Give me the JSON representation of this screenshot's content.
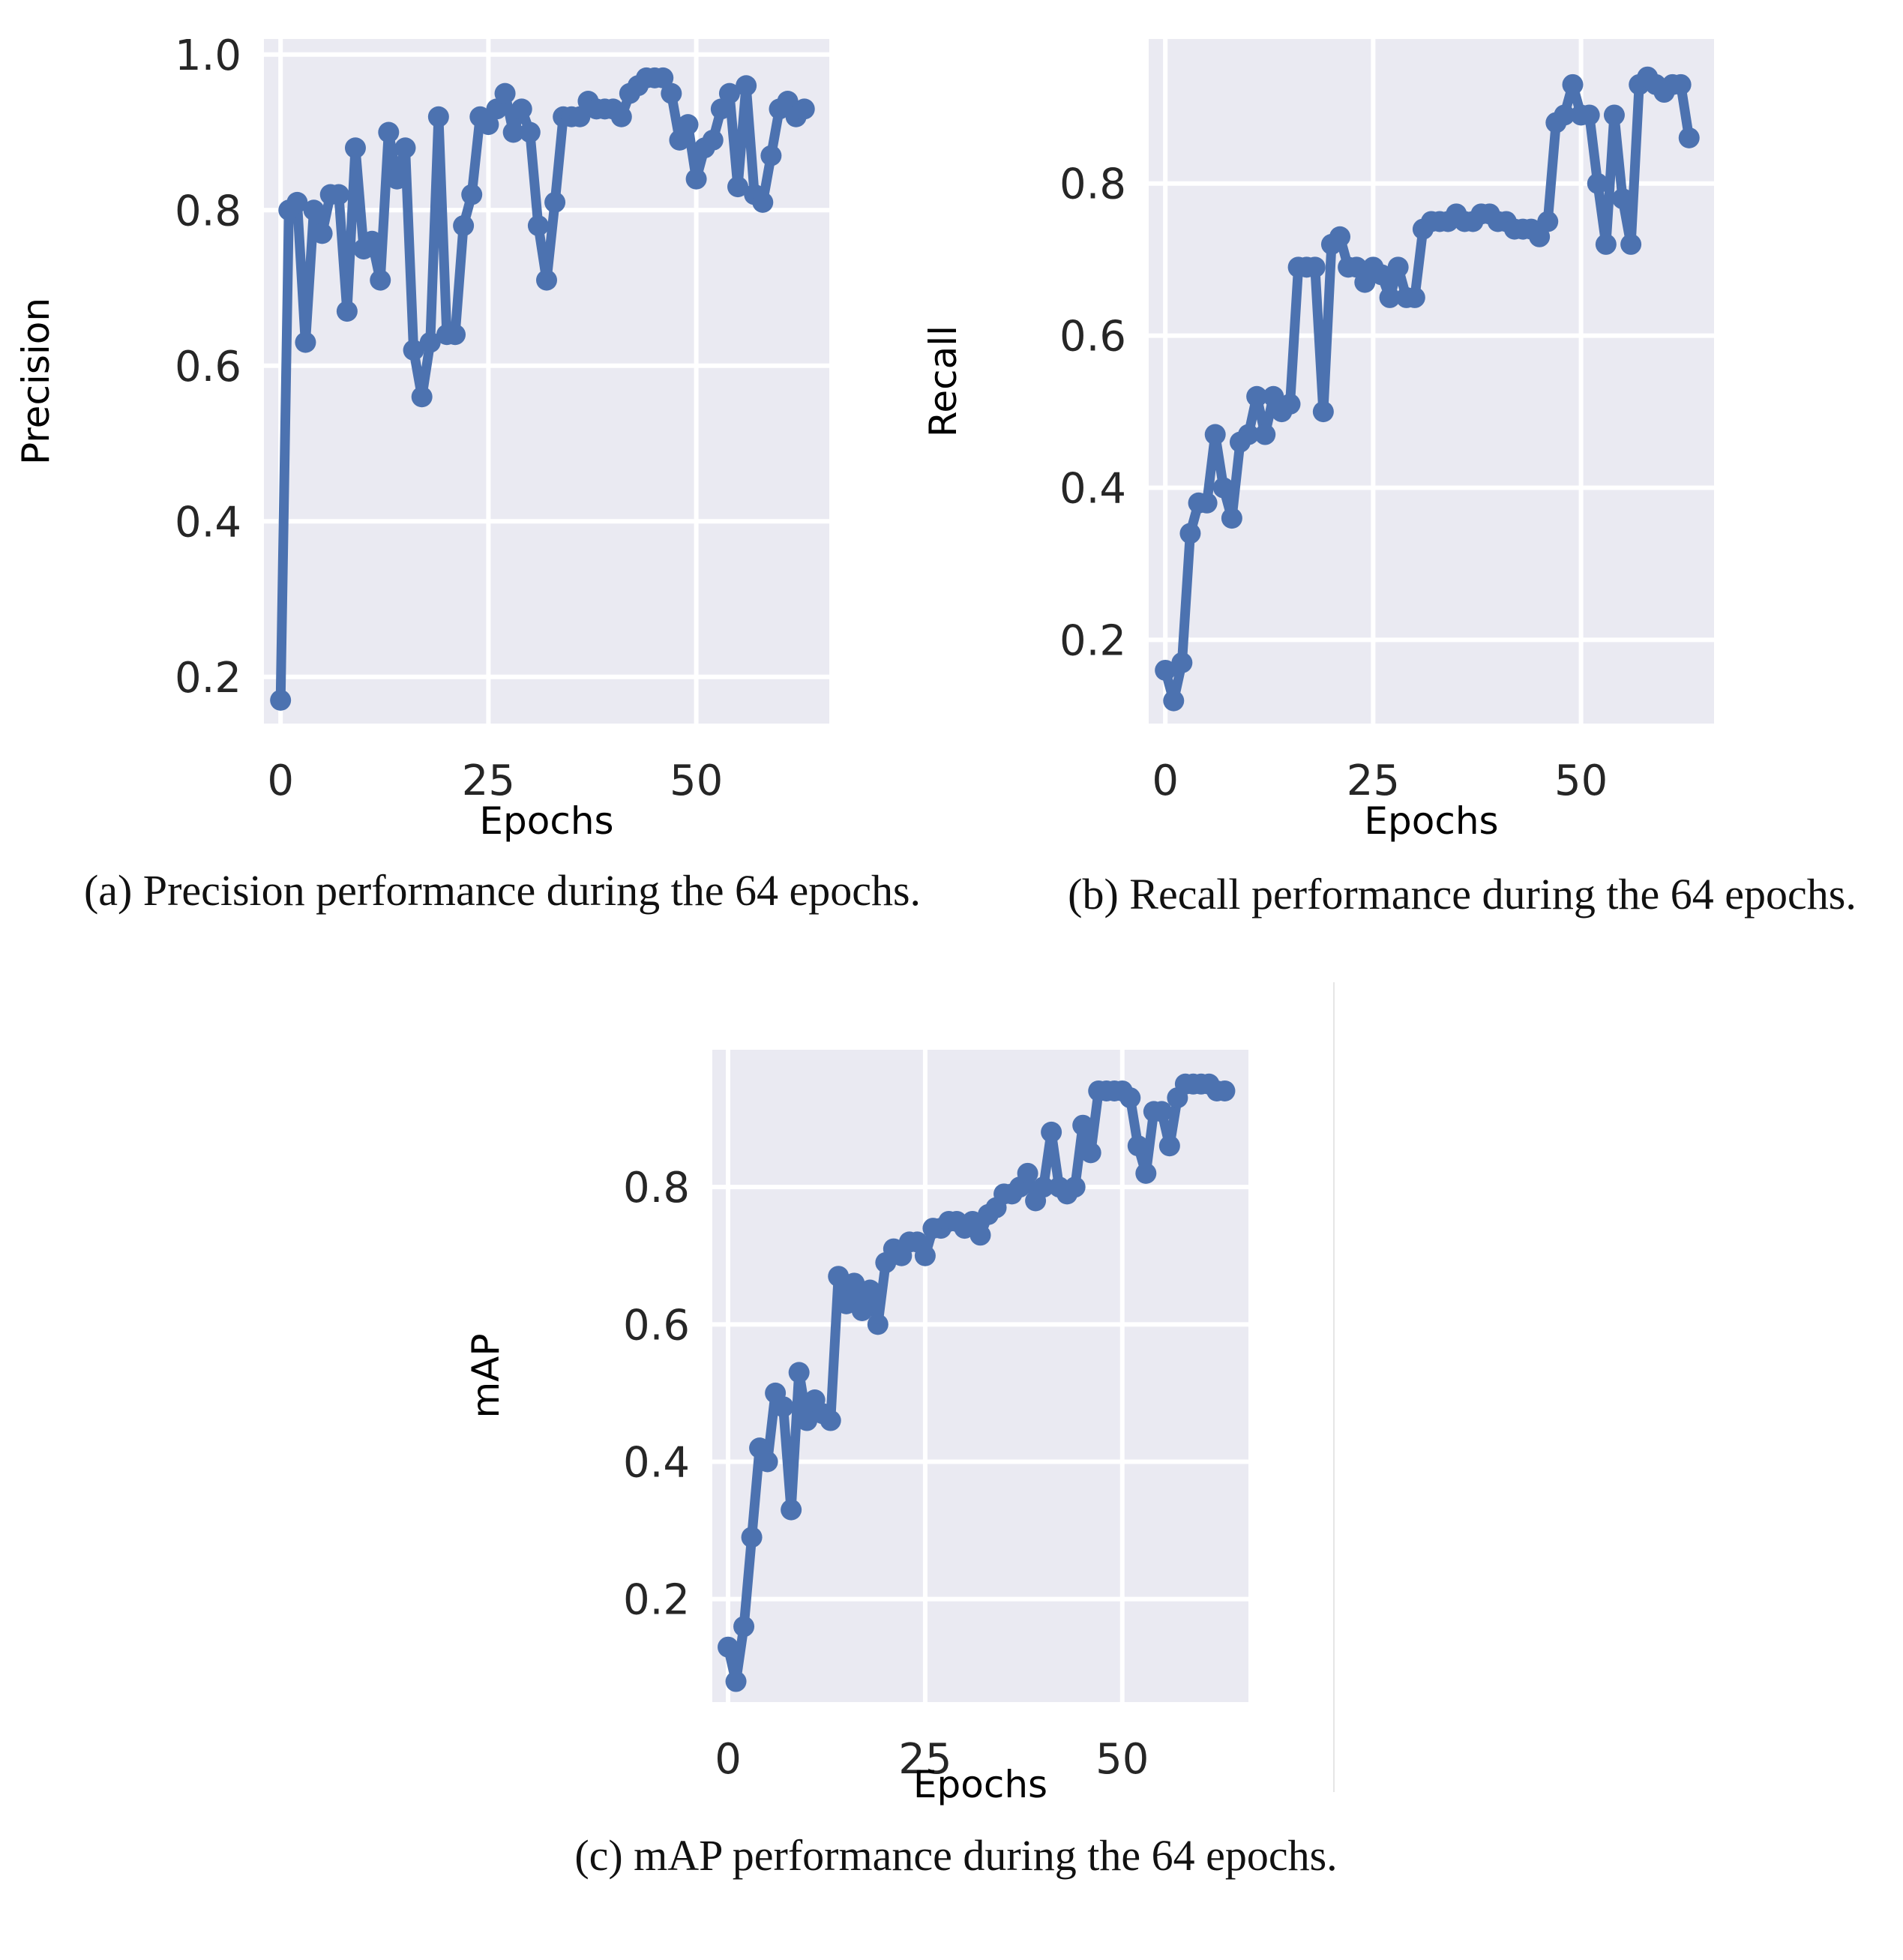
{
  "colors": {
    "panel_bg": "#EAEAF2",
    "grid": "#FFFFFF",
    "line": "#4C72B0",
    "text": "#262626"
  },
  "chart_data": [
    {
      "type": "line",
      "id": "precision",
      "ylabel": "Precision",
      "xlabel": "Epochs",
      "xlim": [
        -2,
        66
      ],
      "ylim": [
        0.14,
        1.02
      ],
      "xticks": [
        0,
        25,
        50
      ],
      "yticks": [
        0.2,
        0.4,
        0.6,
        0.8,
        1.0
      ],
      "ytick_labels": [
        "0.2",
        "0.4",
        "0.6",
        "0.8",
        "1.0"
      ],
      "caption": "(a) Precision performance during the 64 epochs.",
      "x": [
        0,
        1,
        2,
        3,
        4,
        5,
        6,
        7,
        8,
        9,
        10,
        11,
        12,
        13,
        14,
        15,
        16,
        17,
        18,
        19,
        20,
        21,
        22,
        23,
        24,
        25,
        26,
        27,
        28,
        29,
        30,
        31,
        32,
        33,
        34,
        35,
        36,
        37,
        38,
        39,
        40,
        41,
        42,
        43,
        44,
        45,
        46,
        47,
        48,
        49,
        50,
        51,
        52,
        53,
        54,
        55,
        56,
        57,
        58,
        59,
        60,
        61,
        62,
        63
      ],
      "values": [
        0.17,
        0.8,
        0.81,
        0.63,
        0.8,
        0.77,
        0.82,
        0.82,
        0.67,
        0.88,
        0.75,
        0.76,
        0.71,
        0.9,
        0.84,
        0.88,
        0.62,
        0.56,
        0.63,
        0.92,
        0.64,
        0.64,
        0.78,
        0.82,
        0.92,
        0.91,
        0.93,
        0.95,
        0.9,
        0.93,
        0.9,
        0.78,
        0.71,
        0.81,
        0.92,
        0.92,
        0.92,
        0.94,
        0.93,
        0.93,
        0.93,
        0.92,
        0.95,
        0.96,
        0.97,
        0.97,
        0.97,
        0.95,
        0.89,
        0.91,
        0.84,
        0.88,
        0.89,
        0.93,
        0.95,
        0.83,
        0.96,
        0.82,
        0.81,
        0.87,
        0.93,
        0.94,
        0.92,
        0.93
      ]
    },
    {
      "type": "line",
      "id": "recall",
      "ylabel": "Recall",
      "xlabel": "Epochs",
      "xlim": [
        -2,
        66
      ],
      "ylim": [
        0.09,
        0.99
      ],
      "xticks": [
        0,
        25,
        50
      ],
      "yticks": [
        0.2,
        0.4,
        0.6,
        0.8
      ],
      "ytick_labels": [
        "0.2",
        "0.4",
        "0.6",
        "0.8"
      ],
      "caption": "(b) Recall performance during the 64 epochs.",
      "x": [
        0,
        1,
        2,
        3,
        4,
        5,
        6,
        7,
        8,
        9,
        10,
        11,
        12,
        13,
        14,
        15,
        16,
        17,
        18,
        19,
        20,
        21,
        22,
        23,
        24,
        25,
        26,
        27,
        28,
        29,
        30,
        31,
        32,
        33,
        34,
        35,
        36,
        37,
        38,
        39,
        40,
        41,
        42,
        43,
        44,
        45,
        46,
        47,
        48,
        49,
        50,
        51,
        52,
        53,
        54,
        55,
        56,
        57,
        58,
        59,
        60,
        61,
        62,
        63
      ],
      "values": [
        0.16,
        0.12,
        0.17,
        0.34,
        0.38,
        0.38,
        0.47,
        0.4,
        0.36,
        0.46,
        0.47,
        0.52,
        0.47,
        0.52,
        0.5,
        0.51,
        0.69,
        0.69,
        0.69,
        0.5,
        0.72,
        0.73,
        0.69,
        0.69,
        0.67,
        0.69,
        0.68,
        0.65,
        0.69,
        0.65,
        0.65,
        0.74,
        0.75,
        0.75,
        0.75,
        0.76,
        0.75,
        0.75,
        0.76,
        0.76,
        0.75,
        0.75,
        0.74,
        0.74,
        0.74,
        0.73,
        0.75,
        0.88,
        0.89,
        0.93,
        0.89,
        0.89,
        0.8,
        0.72,
        0.89,
        0.78,
        0.72,
        0.93,
        0.94,
        0.93,
        0.92,
        0.93,
        0.93,
        0.86
      ]
    },
    {
      "type": "line",
      "id": "map",
      "ylabel": "mAP",
      "xlabel": "Epochs",
      "xlim": [
        -2,
        66
      ],
      "ylim": [
        0.05,
        1.0
      ],
      "xticks": [
        0,
        25,
        50
      ],
      "yticks": [
        0.2,
        0.4,
        0.6,
        0.8
      ],
      "ytick_labels": [
        "0.2",
        "0.4",
        "0.6",
        "0.8"
      ],
      "caption": "(c) mAP performance during the 64 epochs.",
      "x": [
        0,
        1,
        2,
        3,
        4,
        5,
        6,
        7,
        8,
        9,
        10,
        11,
        12,
        13,
        14,
        15,
        16,
        17,
        18,
        19,
        20,
        21,
        22,
        23,
        24,
        25,
        26,
        27,
        28,
        29,
        30,
        31,
        32,
        33,
        34,
        35,
        36,
        37,
        38,
        39,
        40,
        41,
        42,
        43,
        44,
        45,
        46,
        47,
        48,
        49,
        50,
        51,
        52,
        53,
        54,
        55,
        56,
        57,
        58,
        59,
        60,
        61,
        62,
        63
      ],
      "values": [
        0.13,
        0.08,
        0.16,
        0.29,
        0.42,
        0.4,
        0.5,
        0.48,
        0.33,
        0.53,
        0.46,
        0.49,
        0.47,
        0.46,
        0.67,
        0.63,
        0.66,
        0.62,
        0.65,
        0.6,
        0.69,
        0.71,
        0.7,
        0.72,
        0.72,
        0.7,
        0.74,
        0.74,
        0.75,
        0.75,
        0.74,
        0.75,
        0.73,
        0.76,
        0.77,
        0.79,
        0.79,
        0.8,
        0.82,
        0.78,
        0.8,
        0.88,
        0.8,
        0.79,
        0.8,
        0.89,
        0.85,
        0.94,
        0.94,
        0.94,
        0.94,
        0.93,
        0.86,
        0.82,
        0.91,
        0.91,
        0.86,
        0.93,
        0.95,
        0.95,
        0.95,
        0.95,
        0.94,
        0.94
      ]
    }
  ]
}
